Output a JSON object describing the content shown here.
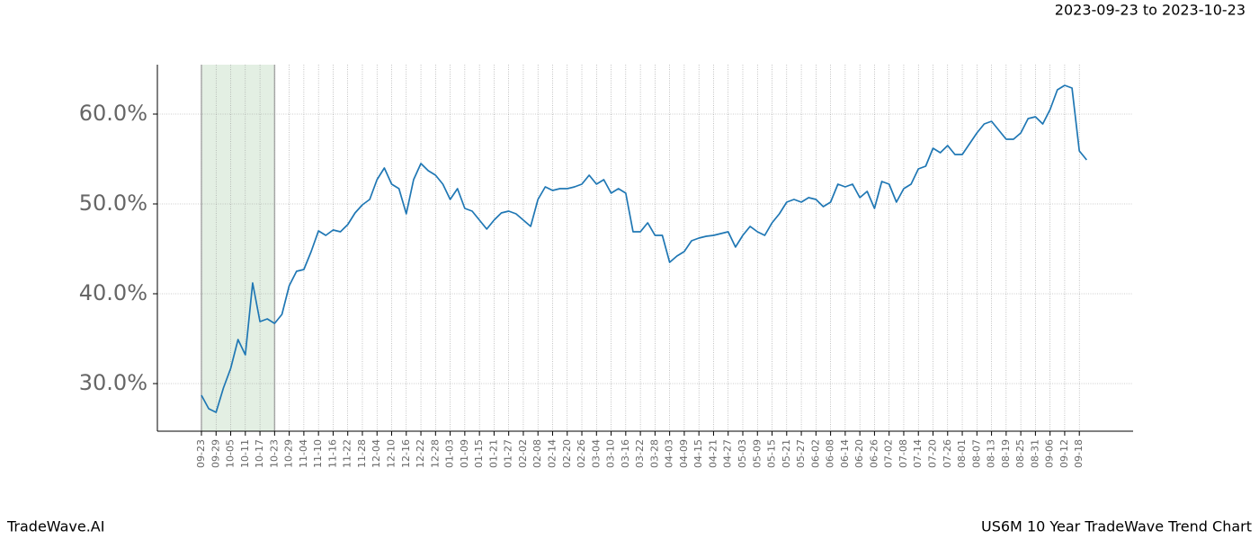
{
  "chart_data": {
    "type": "line",
    "subtitle": "2023-09-23 to 2023-10-23",
    "footer_left": "TradeWave.AI",
    "footer_right": "US6M 10 Year TradeWave Trend Chart",
    "categories": [
      "09-23",
      null,
      "09-29",
      null,
      "10-05",
      null,
      "10-11",
      null,
      "10-17",
      null,
      "10-23",
      null,
      "10-29",
      null,
      "11-04",
      null,
      "11-10",
      null,
      "11-16",
      null,
      "11-22",
      null,
      "11-28",
      null,
      "12-04",
      null,
      "12-10",
      null,
      "12-16",
      null,
      "12-22",
      null,
      "12-28",
      null,
      "01-03",
      null,
      "01-09",
      null,
      "01-15",
      null,
      "01-21",
      null,
      "01-27",
      null,
      "02-02",
      null,
      "02-08",
      null,
      "02-14",
      null,
      "02-20",
      null,
      "02-26",
      null,
      "03-04",
      null,
      "03-10",
      null,
      "03-16",
      null,
      "03-22",
      null,
      "03-28",
      null,
      "04-03",
      null,
      "04-09",
      null,
      "04-15",
      null,
      "04-21",
      null,
      "04-27",
      null,
      "05-03",
      null,
      "05-09",
      null,
      "05-15",
      null,
      "05-21",
      null,
      "05-27",
      null,
      "06-02",
      null,
      "06-08",
      null,
      "06-14",
      null,
      "06-20",
      null,
      "06-26",
      null,
      "07-02",
      null,
      "07-08",
      null,
      "07-14",
      null,
      "07-20",
      null,
      "07-26",
      null,
      "08-01",
      null,
      "08-07",
      null,
      "08-13",
      null,
      "08-19",
      null,
      "08-25",
      null,
      "08-31",
      null,
      "09-06",
      null,
      "09-12",
      null,
      "09-18",
      null
    ],
    "series": [
      {
        "color": "#1f77b4",
        "values": [
          28.7,
          27.2,
          26.8,
          29.5,
          31.7,
          34.9,
          33.2,
          41.2,
          36.9,
          37.2,
          36.7,
          37.7,
          40.9,
          42.5,
          42.7,
          44.7,
          47.0,
          46.5,
          47.1,
          46.9,
          47.7,
          49.0,
          49.9,
          50.5,
          52.7,
          54.0,
          52.2,
          51.7,
          48.9,
          52.7,
          54.5,
          53.7,
          53.2,
          52.2,
          50.5,
          51.7,
          49.5,
          49.2,
          48.2,
          47.2,
          48.2,
          49.0,
          49.2,
          48.9,
          48.2,
          47.5,
          50.5,
          51.9,
          51.5,
          51.7,
          51.7,
          51.9,
          52.2,
          53.2,
          52.2,
          52.7,
          51.2,
          51.7,
          51.2,
          46.9,
          46.9,
          47.9,
          46.5,
          46.5,
          43.5,
          44.2,
          44.7,
          45.9,
          46.2,
          46.4,
          46.5,
          46.7,
          46.9,
          45.2,
          46.5,
          47.5,
          46.9,
          46.5,
          47.9,
          48.9,
          50.2,
          50.5,
          50.2,
          50.7,
          50.5,
          49.7,
          50.2,
          52.2,
          51.9,
          52.2,
          50.7,
          51.4,
          49.5,
          52.5,
          52.2,
          50.2,
          51.7,
          52.2,
          53.9,
          54.2,
          56.2,
          55.7,
          56.5,
          55.5,
          55.5,
          56.7,
          57.9,
          58.9,
          59.2,
          58.2,
          57.2,
          57.2,
          57.9,
          59.5,
          59.7,
          58.9,
          60.5,
          62.7,
          63.2,
          62.9,
          55.9,
          54.9
        ]
      }
    ],
    "ylim": [
      24.7,
      65.5
    ],
    "yticks": [
      {
        "value": 30,
        "label": "30.0%"
      },
      {
        "value": 40,
        "label": "40.0%"
      },
      {
        "value": 50,
        "label": "50.0%"
      },
      {
        "value": 60,
        "label": "60.0%"
      }
    ],
    "grid": true,
    "highlight": {
      "from": "09-23",
      "to": "10-23",
      "color": "#e3efe3"
    }
  }
}
